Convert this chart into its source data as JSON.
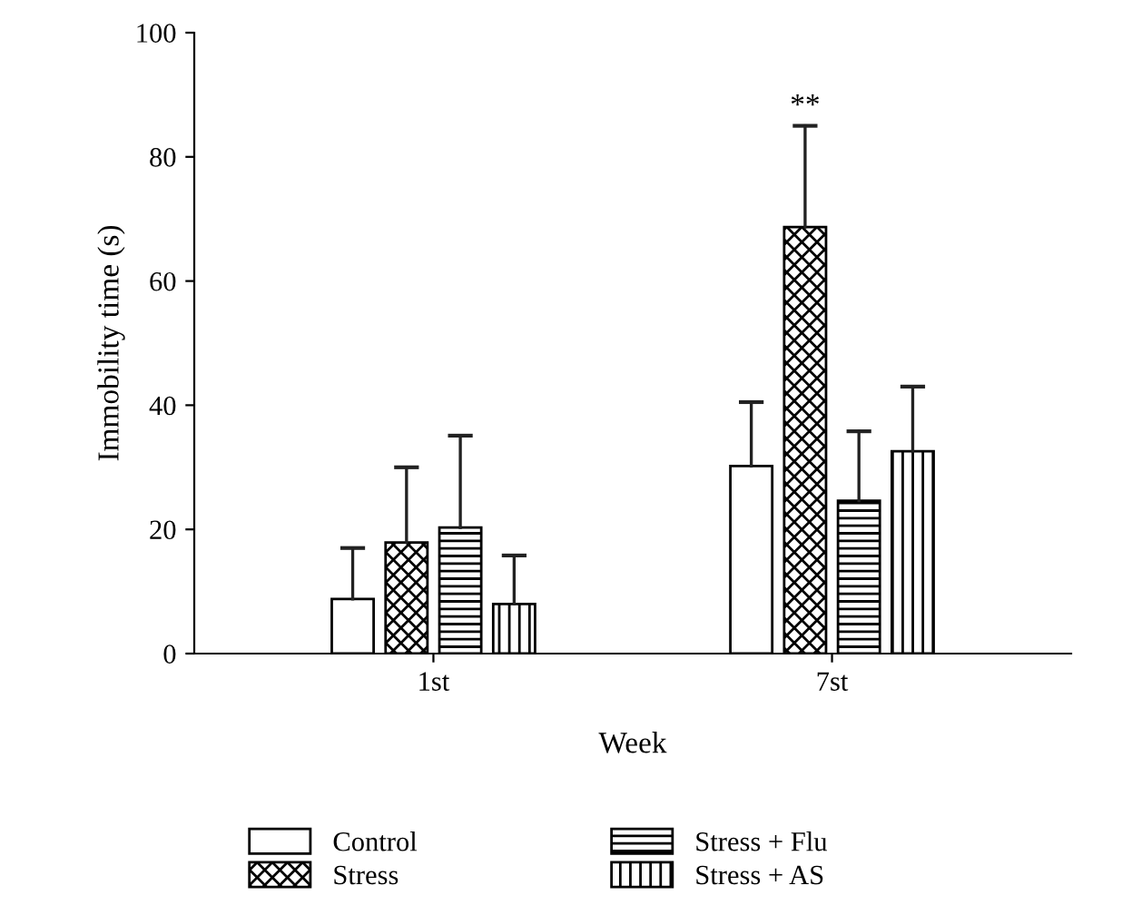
{
  "chart_data": {
    "type": "bar",
    "xlabel": "Week",
    "ylabel": "Immobility time (s)",
    "categories": [
      "1st",
      "7st"
    ],
    "series": [
      {
        "name": "Control",
        "color": "#000000",
        "values": [
          8.8,
          30.2
        ],
        "errors": [
          [
            8.8,
            17.0
          ],
          [
            30.2,
            40.5
          ]
        ]
      },
      {
        "name": "Stress",
        "color": "#000000",
        "values": [
          17.9,
          68.7
        ],
        "errors": [
          [
            17.9,
            30.0
          ],
          [
            68.7,
            85.0
          ]
        ]
      },
      {
        "name": "Stress + Flu",
        "color": "#000000",
        "values": [
          20.3,
          24.6
        ],
        "errors": [
          [
            20.3,
            35.1
          ],
          [
            24.6,
            35.8
          ]
        ]
      },
      {
        "name": "Stress + AS",
        "color": "#000000",
        "values": [
          8.0,
          32.6
        ],
        "errors": [
          [
            8.0,
            15.8
          ],
          [
            32.6,
            43.0
          ]
        ]
      }
    ],
    "annotations": [
      "**"
    ],
    "ylim": [
      0,
      100
    ],
    "yticks": [
      0,
      20,
      40,
      60,
      80,
      100
    ],
    "grid": false,
    "legend": "bottom"
  }
}
